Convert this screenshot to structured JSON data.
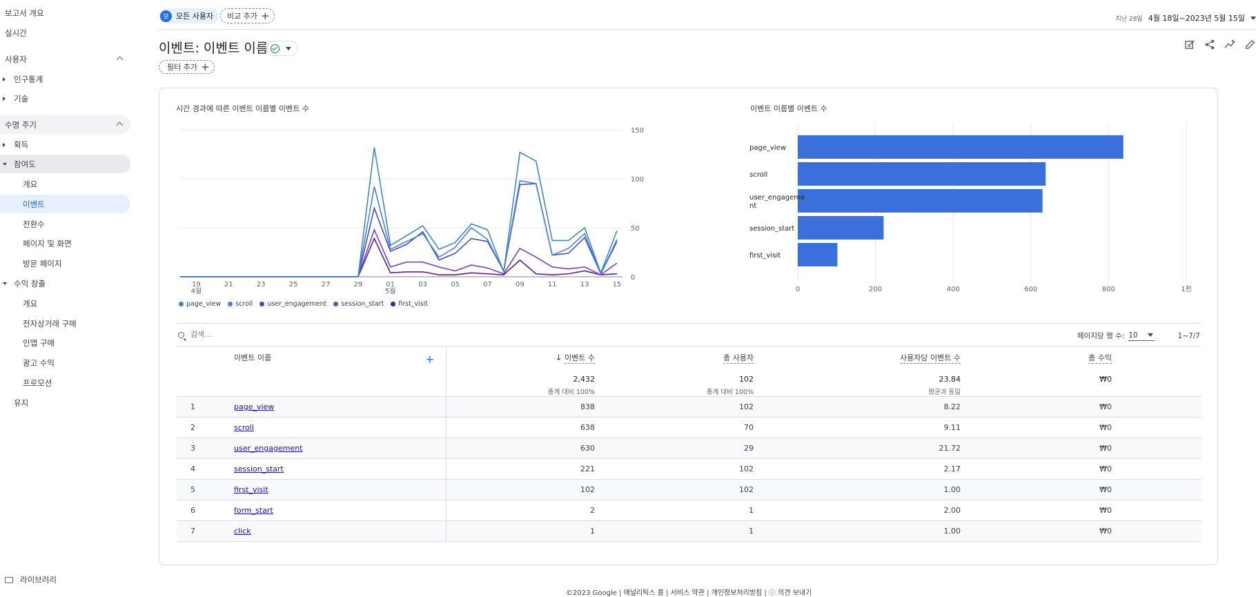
{
  "sidebar": {
    "report_overview": "보고서 개요",
    "realtime": "실시간",
    "user_section": "사용자",
    "demographics": "인구통계",
    "tech": "기술",
    "lifecycle_section": "수명 주기",
    "acquisition": "획득",
    "engagement": "참여도",
    "eng_overview": "개요",
    "eng_events": "이벤트",
    "eng_conversions": "전환수",
    "eng_pages": "페이지 및 화면",
    "eng_landing": "방문 페이지",
    "monetization": "수익 창출",
    "mon_overview": "개요",
    "mon_ecommerce": "전자상거래 구매",
    "mon_inapp": "인앱 구매",
    "mon_ads": "광고 수익",
    "mon_promotions": "프로모션",
    "retention": "유지",
    "library": "라이브러리"
  },
  "topbar": {
    "segment_avatar": "모",
    "segment_label": "모든 사용자",
    "compare_label": "비교 추가",
    "date_prefix": "지난 28일",
    "date_value": "4월 18일~2023년 5월 15일"
  },
  "page": {
    "title": "이벤트: 이벤트 이름",
    "filter_label": "필터 추가"
  },
  "colors": {
    "page_view": "#4285c5",
    "scroll": "#4a7fe0",
    "user_engagement": "#3d4fc4",
    "session_start": "#7b3fc4",
    "first_visit": "#5b1a96",
    "bar": "#3b6fdc"
  },
  "line_chart": {
    "title": "시간 경과에 따른 이벤트 이름별 이벤트 수"
  },
  "bar_chart": {
    "title": "이벤트 이름별 이벤트 수"
  },
  "chart_data": [
    {
      "type": "line",
      "title": "시간 경과에 따른 이벤트 이름별 이벤트 수",
      "x": [
        "04-18",
        "04-19",
        "04-20",
        "04-21",
        "04-22",
        "04-23",
        "04-24",
        "04-25",
        "04-26",
        "04-27",
        "04-28",
        "04-29",
        "04-30",
        "05-01",
        "05-02",
        "05-03",
        "05-04",
        "05-05",
        "05-06",
        "05-07",
        "05-08",
        "05-09",
        "05-10",
        "05-11",
        "05-12",
        "05-13",
        "05-14",
        "05-15"
      ],
      "x_tick_labels": [
        "19",
        "21",
        "23",
        "25",
        "27",
        "29",
        "01",
        "03",
        "05",
        "07",
        "09",
        "11",
        "13",
        "15"
      ],
      "x_tick_index": [
        1,
        3,
        5,
        7,
        9,
        11,
        13,
        15,
        17,
        19,
        21,
        23,
        25,
        27
      ],
      "x_sublabels": [
        {
          "index": 1,
          "label": "4월"
        },
        {
          "index": 13,
          "label": "5월"
        }
      ],
      "ylim": [
        0,
        150
      ],
      "y_ticks": [
        0,
        50,
        100,
        150
      ],
      "grid": true,
      "legend": "bottom-left",
      "series": [
        {
          "name": "page_view",
          "values": [
            0,
            0,
            0,
            0,
            0,
            0,
            0,
            0,
            0,
            0,
            0,
            0,
            132,
            32,
            42,
            52,
            28,
            35,
            54,
            48,
            5,
            127,
            118,
            37,
            37,
            50,
            4,
            47
          ]
        },
        {
          "name": "scroll",
          "values": [
            0,
            0,
            0,
            0,
            0,
            0,
            0,
            0,
            0,
            0,
            0,
            0,
            92,
            28,
            36,
            44,
            20,
            30,
            50,
            38,
            6,
            98,
            95,
            22,
            29,
            44,
            3,
            38
          ]
        },
        {
          "name": "user_engagement",
          "values": [
            0,
            0,
            0,
            0,
            0,
            0,
            0,
            0,
            0,
            0,
            0,
            0,
            70,
            26,
            33,
            46,
            17,
            24,
            39,
            36,
            6,
            94,
            95,
            22,
            24,
            40,
            3,
            36
          ]
        },
        {
          "name": "session_start",
          "values": [
            0,
            0,
            0,
            0,
            0,
            0,
            0,
            0,
            0,
            0,
            0,
            0,
            48,
            10,
            15,
            15,
            10,
            6,
            12,
            9,
            3,
            29,
            20,
            10,
            8,
            10,
            2,
            14
          ]
        },
        {
          "name": "first_visit",
          "values": [
            0,
            0,
            0,
            0,
            0,
            0,
            0,
            0,
            0,
            0,
            0,
            0,
            39,
            4,
            5,
            5,
            2,
            2,
            4,
            3,
            2,
            17,
            3,
            2,
            3,
            6,
            2,
            3
          ]
        }
      ]
    },
    {
      "type": "bar",
      "orientation": "horizontal",
      "title": "이벤트 이름별 이벤트 수",
      "categories": [
        "page_view",
        "scroll",
        "user_engageme\nnt",
        "session_start",
        "first_visit"
      ],
      "values": [
        838,
        638,
        630,
        221,
        102
      ],
      "xlim": [
        0,
        1000
      ],
      "x_ticks": [
        "0",
        "200",
        "400",
        "600",
        "800",
        "1천"
      ],
      "grid": true
    }
  ],
  "table": {
    "search_placeholder": "검색...",
    "rows_per_page_label": "페이지당 행 수:",
    "rows_per_page_value": "10",
    "pagination": "1~7/7",
    "headers": {
      "dimension": "이벤트 이름",
      "event_count": "이벤트 수",
      "total_users": "총 사용자",
      "events_per_user": "사용자당 이벤트 수",
      "total_revenue": "총 수익"
    },
    "totals": {
      "event_count": "2,432",
      "event_count_sub": "총계 대비 100%",
      "total_users": "102",
      "total_users_sub": "총계 대비 100%",
      "events_per_user": "23.84",
      "events_per_user_sub": "평균과 동일",
      "total_revenue": "₩0"
    },
    "rows": [
      {
        "rank": "1",
        "name": "page_view",
        "events": "838",
        "users": "102",
        "per_user": "8.22",
        "revenue": "₩0"
      },
      {
        "rank": "2",
        "name": "scroll",
        "events": "638",
        "users": "70",
        "per_user": "9.11",
        "revenue": "₩0"
      },
      {
        "rank": "3",
        "name": "user_engagement",
        "events": "630",
        "users": "29",
        "per_user": "21.72",
        "revenue": "₩0"
      },
      {
        "rank": "4",
        "name": "session_start",
        "events": "221",
        "users": "102",
        "per_user": "2.17",
        "revenue": "₩0"
      },
      {
        "rank": "5",
        "name": "first_visit",
        "events": "102",
        "users": "102",
        "per_user": "1.00",
        "revenue": "₩0"
      },
      {
        "rank": "6",
        "name": "form_start",
        "events": "2",
        "users": "1",
        "per_user": "2.00",
        "revenue": "₩0"
      },
      {
        "rank": "7",
        "name": "click",
        "events": "1",
        "users": "1",
        "per_user": "1.00",
        "revenue": "₩0"
      }
    ]
  },
  "footer": {
    "text": "©2023 Google | 애널리틱스 홈 | 서비스 약관 | 개인정보처리방침 | ⓘ 의견 보내기"
  }
}
